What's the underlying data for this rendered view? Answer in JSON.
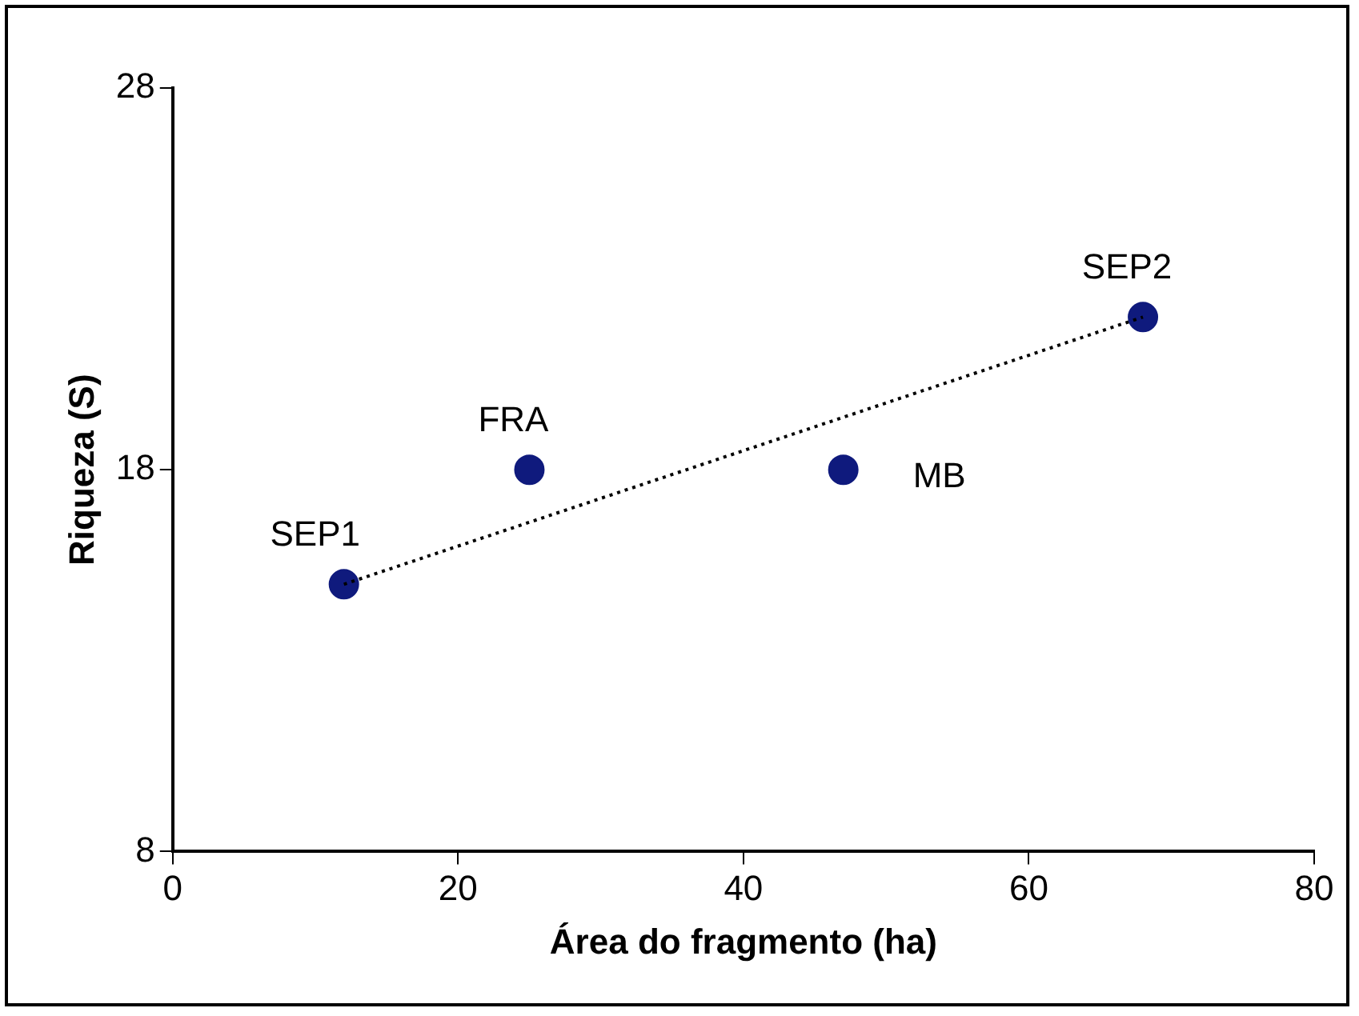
{
  "chart_data": {
    "type": "scatter",
    "xlabel": "Área do fragmento (ha)",
    "ylabel": "Riqueza (S)",
    "xlim": [
      0,
      80
    ],
    "xticks": [
      0,
      20,
      40,
      60,
      80
    ],
    "ylim": [
      8,
      28
    ],
    "yticks": [
      8,
      18,
      28
    ],
    "grid": false,
    "legend": false,
    "marker": "circle",
    "series": [
      {
        "color": "#0f1a7d",
        "x": [
          12,
          25,
          47,
          68
        ],
        "values": [
          15,
          18,
          18,
          22
        ]
      },
      {
        "type": "line",
        "color": "#000000",
        "line_style": "dotted",
        "marker": "none",
        "x": [
          12,
          68
        ],
        "values": [
          15,
          22
        ]
      }
    ],
    "annotations": [
      {
        "text": "SEP1",
        "x": 12,
        "y": 15
      },
      {
        "text": "FRA",
        "x": 25,
        "y": 18
      },
      {
        "text": "MB",
        "x": 47,
        "y": 18
      },
      {
        "text": "SEP2",
        "x": 68,
        "y": 22
      }
    ]
  }
}
